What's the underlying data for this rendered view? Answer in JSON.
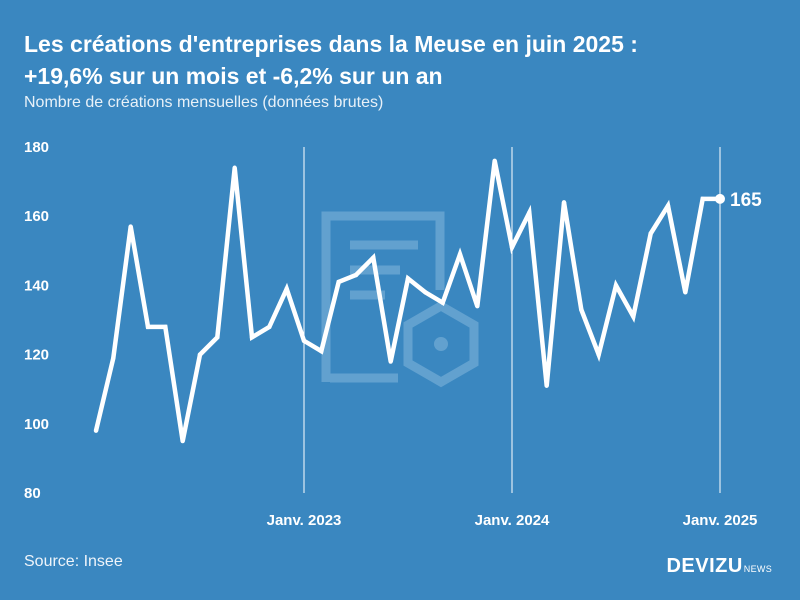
{
  "header": {
    "title_line1": "Les créations d'entreprises dans la Meuse en juin 2025 :",
    "title_line2": "+19,6% sur un mois et -6,2% sur un an",
    "subtitle": "Nombre de créations mensuelles (données brutes)"
  },
  "footer": {
    "source": "Source: Insee",
    "brand": "DEVIZU",
    "brand_sub": "NEWS"
  },
  "colors": {
    "background": "#3a87c0",
    "line": "#ffffff",
    "watermark": "#6aa6d2"
  },
  "watermark_icon": "document-hexagon-icon",
  "chart_data": {
    "type": "line",
    "title": "Les créations d'entreprises dans la Meuse en juin 2025 : +19,6% sur un mois et -6,2% sur un an",
    "ylabel": "Nombre de créations mensuelles (données brutes)",
    "xlabel": "",
    "ylim": [
      80,
      180
    ],
    "yticks": [
      80,
      100,
      120,
      140,
      160,
      180
    ],
    "x_tick_labels": [
      {
        "label": "Janv. 2023",
        "x": "2023-01"
      },
      {
        "label": "Janv. 2024",
        "x": "2024-01"
      },
      {
        "label": "Janv. 2025",
        "x": "2025-01"
      }
    ],
    "grid": "vertical lines at x tick labels",
    "end_label": "165",
    "x": [
      "2022-01",
      "2022-02",
      "2022-03",
      "2022-04",
      "2022-05",
      "2022-06",
      "2022-07",
      "2022-08",
      "2022-09",
      "2022-10",
      "2022-11",
      "2022-12",
      "2023-01",
      "2023-02",
      "2023-03",
      "2023-04",
      "2023-05",
      "2023-06",
      "2023-07",
      "2023-08",
      "2023-09",
      "2023-10",
      "2023-11",
      "2023-12",
      "2024-01",
      "2024-02",
      "2024-03",
      "2024-04",
      "2024-05",
      "2024-06",
      "2024-07",
      "2024-08",
      "2024-09",
      "2024-10",
      "2024-11",
      "2024-12",
      "2025-01",
      "2025-02",
      "2025-03",
      "2025-04",
      "2025-05",
      "2025-06"
    ],
    "values": [
      98,
      119,
      157,
      128,
      128,
      95,
      120,
      125,
      174,
      125,
      128,
      139,
      124,
      121,
      141,
      143,
      148,
      118,
      142,
      138,
      135,
      149,
      134,
      176,
      151,
      161,
      111,
      164,
      133,
      120,
      140,
      131,
      155,
      163,
      138,
      165,
      165,
      null,
      null,
      null,
      null,
      null
    ]
  }
}
